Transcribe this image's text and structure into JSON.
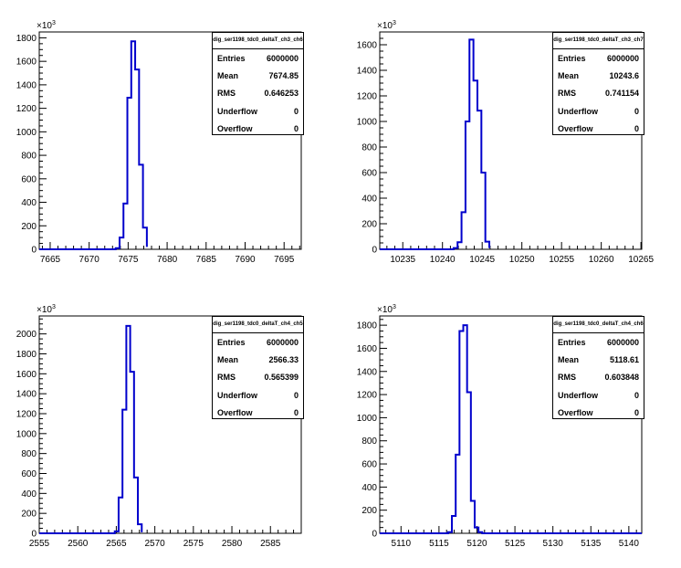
{
  "colors": {
    "line": "#0000cc",
    "axis": "#000000",
    "background": "#ffffff"
  },
  "chart_data": [
    {
      "type": "bar",
      "stats": {
        "title": "dig_ser1198_tdc0_deltaT_ch3_ch6",
        "rows": [
          {
            "label": "Entries",
            "value": "6000000"
          },
          {
            "label": "Mean",
            "value": "7674.85"
          },
          {
            "label": "RMS",
            "value": "0.646253"
          },
          {
            "label": "Underflow",
            "value": "0"
          },
          {
            "label": "Overflow",
            "value": "0"
          }
        ]
      },
      "y_exponent_base": "×10",
      "y_exponent_power": "3",
      "xlim": [
        7663.6,
        7697.2
      ],
      "ylim": [
        0,
        1850
      ],
      "xticks": [
        7665,
        7670,
        7675,
        7680,
        7685,
        7690,
        7695
      ],
      "yticks": [
        0,
        200,
        400,
        600,
        800,
        1000,
        1200,
        1400,
        1600,
        1800
      ],
      "bin_edges": [
        7673.4,
        7673.9,
        7674.4,
        7674.9,
        7675.4,
        7675.9,
        7676.4,
        7676.9,
        7677.4
      ],
      "counts": [
        10,
        100,
        390,
        1290,
        1770,
        1530,
        720,
        185,
        20
      ]
    },
    {
      "type": "bar",
      "stats": {
        "title": "dig_ser1198_tdc0_deltaT_ch3_ch7",
        "rows": [
          {
            "label": "Entries",
            "value": "6000000"
          },
          {
            "label": "Mean",
            "value": "10243.6"
          },
          {
            "label": "RMS",
            "value": "0.741154"
          },
          {
            "label": "Underflow",
            "value": "0"
          },
          {
            "label": "Overflow",
            "value": "0"
          }
        ]
      },
      "y_exponent_base": "×10",
      "y_exponent_power": "3",
      "xlim": [
        10232.1,
        10265.1
      ],
      "ylim": [
        0,
        1700
      ],
      "xticks": [
        10235,
        10240,
        10245,
        10250,
        10255,
        10260,
        10265
      ],
      "yticks": [
        0,
        200,
        400,
        600,
        800,
        1000,
        1200,
        1400,
        1600
      ],
      "bin_edges": [
        10241.4,
        10241.9,
        10242.4,
        10242.9,
        10243.4,
        10243.9,
        10244.4,
        10244.9,
        10245.4,
        10245.9
      ],
      "counts": [
        10,
        55,
        290,
        1000,
        1640,
        1320,
        1085,
        600,
        60,
        10
      ]
    },
    {
      "type": "bar",
      "stats": {
        "title": "dig_ser1198_tdc0_deltaT_ch4_ch5",
        "rows": [
          {
            "label": "Entries",
            "value": "6000000"
          },
          {
            "label": "Mean",
            "value": "2566.33"
          },
          {
            "label": "RMS",
            "value": "0.565399"
          },
          {
            "label": "Underflow",
            "value": "0"
          },
          {
            "label": "Overflow",
            "value": "0"
          }
        ]
      },
      "y_exponent_base": "×10",
      "y_exponent_power": "3",
      "xlim": [
        2555,
        2589
      ],
      "ylim": [
        0,
        2180
      ],
      "xticks": [
        2555,
        2560,
        2565,
        2570,
        2575,
        2580,
        2585
      ],
      "yticks": [
        0,
        200,
        400,
        600,
        800,
        1000,
        1200,
        1400,
        1600,
        1800,
        2000
      ],
      "bin_edges": [
        2564.8,
        2565.3,
        2565.8,
        2566.3,
        2566.8,
        2567.3,
        2567.8,
        2568.3
      ],
      "counts": [
        20,
        360,
        1240,
        2080,
        1620,
        560,
        90,
        10
      ]
    },
    {
      "type": "bar",
      "stats": {
        "title": "dig_ser1198_tdc0_deltaT_ch4_ch6",
        "rows": [
          {
            "label": "Entries",
            "value": "6000000"
          },
          {
            "label": "Mean",
            "value": "5118.61"
          },
          {
            "label": "RMS",
            "value": "0.603848"
          },
          {
            "label": "Underflow",
            "value": "0"
          },
          {
            "label": "Overflow",
            "value": "0"
          }
        ]
      },
      "y_exponent_base": "×10",
      "y_exponent_power": "3",
      "xlim": [
        5107.2,
        5141.7
      ],
      "ylim": [
        0,
        1880
      ],
      "xticks": [
        5110,
        5115,
        5120,
        5125,
        5130,
        5135,
        5140
      ],
      "yticks": [
        0,
        200,
        400,
        600,
        800,
        1000,
        1200,
        1400,
        1600,
        1800
      ],
      "bin_edges": [
        5116.2,
        5116.7,
        5117.2,
        5117.7,
        5118.2,
        5118.7,
        5119.2,
        5119.7,
        5120.2,
        5120.7
      ],
      "counts": [
        10,
        150,
        680,
        1750,
        1800,
        1220,
        280,
        50,
        10
      ]
    }
  ]
}
